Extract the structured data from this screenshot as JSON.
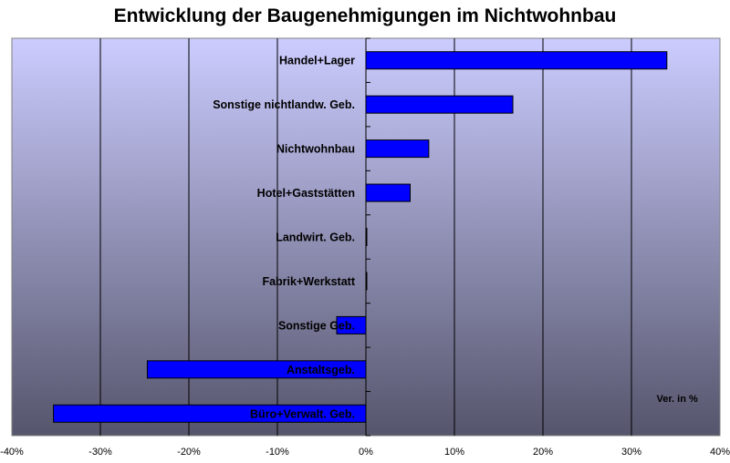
{
  "chart_data": {
    "type": "bar",
    "orientation": "horizontal",
    "title": "Entwicklung der Baugenehmigungen im Nichtwohnbau",
    "categories": [
      "Handel+Lager",
      "Sonstige nichtlandw. Geb.",
      "Nichtwohnbau",
      "Hotel+Gaststätten",
      "Landwirt. Geb.",
      "Fabrik+Werkstatt",
      "Sonstige Geb.",
      "Anstaltsgeb.",
      "Büro+Verwalt. Geb."
    ],
    "values": [
      34.0,
      16.6,
      7.1,
      5.0,
      0.1,
      0.0,
      -3.3,
      -24.7,
      -35.3
    ],
    "xlim": [
      -40,
      40
    ],
    "xticks": [
      -40,
      -30,
      -20,
      -10,
      0,
      10,
      20,
      30,
      40
    ],
    "xtick_labels": [
      "-40%",
      "-30%",
      "-20%",
      "-10%",
      "0%",
      "10%",
      "20%",
      "30%",
      "40%"
    ],
    "annotation": "Ver. in %",
    "grid": "vertical",
    "legend": "none",
    "colors": {
      "bar": "#0000ff",
      "bar_edge": "#000000",
      "plot_top": "#ccccff",
      "plot_bottom": "#55556c",
      "gridline": "#000000"
    }
  }
}
